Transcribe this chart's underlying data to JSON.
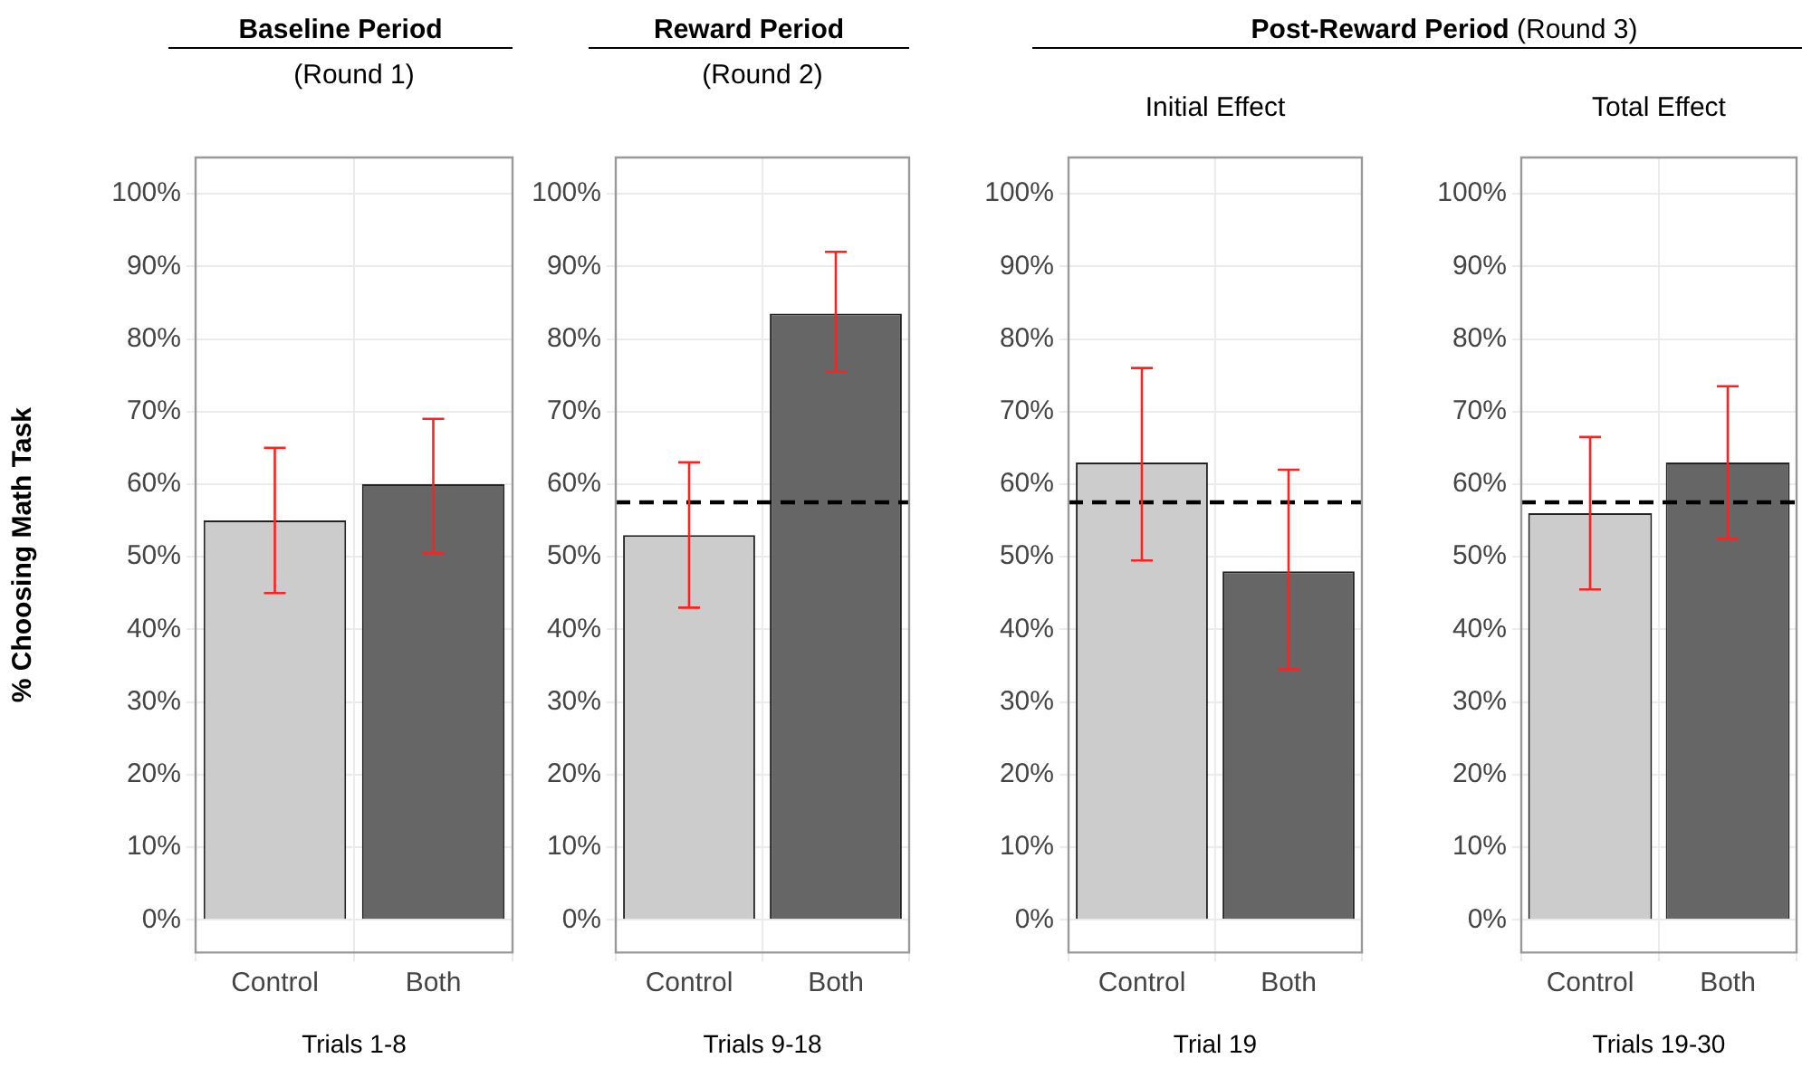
{
  "chart_data": [
    {
      "type": "bar",
      "title": "Baseline Period",
      "subtitle": "(Round 1)",
      "ylabel": "% Choosing Math Task",
      "xlabel": "Trials 1-8",
      "categories": [
        "Control",
        "Both"
      ],
      "values": [
        55,
        60
      ],
      "colors": [
        "#cccccc",
        "#666666"
      ],
      "errors": [
        [
          45,
          65
        ],
        [
          50.5,
          69
        ]
      ],
      "ylim": [
        -4.5,
        105
      ],
      "yticks": [
        {
          "value": 0,
          "label": "0%"
        },
        {
          "value": 10,
          "label": "10%"
        },
        {
          "value": 20,
          "label": "20%"
        },
        {
          "value": 30,
          "label": "30%"
        },
        {
          "value": 40,
          "label": "40%"
        },
        {
          "value": 50,
          "label": "50%"
        },
        {
          "value": 60,
          "label": "60%"
        },
        {
          "value": 70,
          "label": "70%"
        },
        {
          "value": 80,
          "label": "80%"
        },
        {
          "value": 90,
          "label": "90%"
        },
        {
          "value": 100,
          "label": "100%"
        }
      ],
      "grid": true,
      "legend": false
    },
    {
      "type": "bar",
      "title": "Reward Period",
      "subtitle": "(Round 2)",
      "xlabel": "Trials 9-18",
      "categories": [
        "Control",
        "Both"
      ],
      "values": [
        53,
        83.5
      ],
      "colors": [
        "#cccccc",
        "#666666"
      ],
      "errors": [
        [
          43,
          63
        ],
        [
          75.5,
          92
        ]
      ],
      "ylim": [
        -4.5,
        105
      ],
      "yticks": [
        {
          "value": 0,
          "label": "0%"
        },
        {
          "value": 10,
          "label": "10%"
        },
        {
          "value": 20,
          "label": "20%"
        },
        {
          "value": 30,
          "label": "30%"
        },
        {
          "value": 40,
          "label": "40%"
        },
        {
          "value": 50,
          "label": "50%"
        },
        {
          "value": 60,
          "label": "60%"
        },
        {
          "value": 70,
          "label": "70%"
        },
        {
          "value": 80,
          "label": "80%"
        },
        {
          "value": 90,
          "label": "90%"
        },
        {
          "value": 100,
          "label": "100%"
        }
      ],
      "grid": true,
      "legend": false,
      "ref_lines": [
        {
          "axis": "y",
          "value": 57.5,
          "color": "#000000",
          "line_style": "dashed"
        }
      ]
    },
    {
      "type": "bar",
      "title": "Initial Effect",
      "xlabel": "Trial 19",
      "annotations": [
        "Post-Reward Period",
        "(Round 3)"
      ],
      "categories": [
        "Control",
        "Both"
      ],
      "values": [
        63,
        48
      ],
      "colors": [
        "#cccccc",
        "#666666"
      ],
      "errors": [
        [
          49.5,
          76
        ],
        [
          34.5,
          62
        ]
      ],
      "ylim": [
        -4.5,
        105
      ],
      "yticks": [
        {
          "value": 0,
          "label": "0%"
        },
        {
          "value": 10,
          "label": "10%"
        },
        {
          "value": 20,
          "label": "20%"
        },
        {
          "value": 30,
          "label": "30%"
        },
        {
          "value": 40,
          "label": "40%"
        },
        {
          "value": 50,
          "label": "50%"
        },
        {
          "value": 60,
          "label": "60%"
        },
        {
          "value": 70,
          "label": "70%"
        },
        {
          "value": 80,
          "label": "80%"
        },
        {
          "value": 90,
          "label": "90%"
        },
        {
          "value": 100,
          "label": "100%"
        }
      ],
      "grid": true,
      "legend": false,
      "ref_lines": [
        {
          "axis": "y",
          "value": 57.5,
          "color": "#000000",
          "line_style": "dashed"
        }
      ]
    },
    {
      "type": "bar",
      "title": "Total Effect",
      "xlabel": "Trials 19-30",
      "categories": [
        "Control",
        "Both"
      ],
      "values": [
        56,
        63
      ],
      "colors": [
        "#cccccc",
        "#666666"
      ],
      "errors": [
        [
          45.5,
          66.5
        ],
        [
          52.5,
          73.5
        ]
      ],
      "ylim": [
        -4.5,
        105
      ],
      "yticks": [
        {
          "value": 0,
          "label": "0%"
        },
        {
          "value": 10,
          "label": "10%"
        },
        {
          "value": 20,
          "label": "20%"
        },
        {
          "value": 30,
          "label": "30%"
        },
        {
          "value": 40,
          "label": "40%"
        },
        {
          "value": 50,
          "label": "50%"
        },
        {
          "value": 60,
          "label": "60%"
        },
        {
          "value": 70,
          "label": "70%"
        },
        {
          "value": 80,
          "label": "80%"
        },
        {
          "value": 90,
          "label": "90%"
        },
        {
          "value": 100,
          "label": "100%"
        }
      ],
      "grid": true,
      "legend": false,
      "ref_lines": [
        {
          "axis": "y",
          "value": 57.5,
          "color": "#000000",
          "line_style": "dashed"
        }
      ]
    }
  ]
}
